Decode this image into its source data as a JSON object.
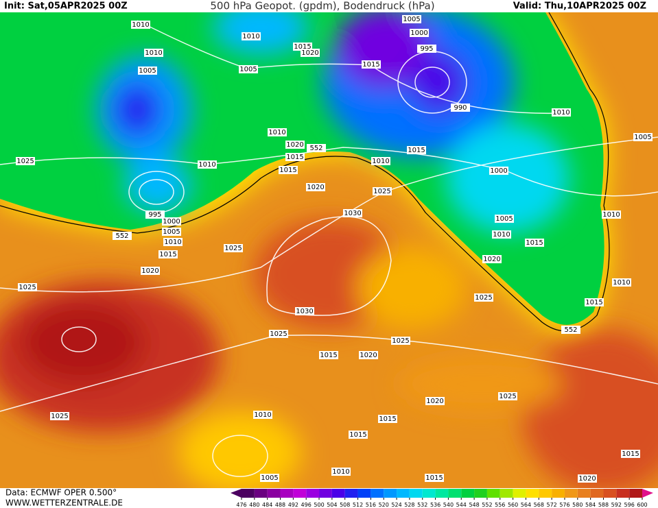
{
  "header": {
    "init": "Init: Sat,05APR2025 00Z",
    "title": "500 hPa Geopot. (gpdm), Bodendruck (hPa)",
    "valid": "Valid: Thu,10APR2025 00Z"
  },
  "map": {
    "isobar_labels": [
      1010,
      1010,
      1015,
      1020,
      1010,
      1005,
      1005,
      1015,
      1005,
      1000,
      995,
      990,
      1010,
      1005,
      1010,
      1020,
      552,
      1015,
      1015,
      1010,
      1010,
      1015,
      1000,
      1025,
      1020,
      1025,
      995,
      1000,
      1005,
      552,
      1010,
      1015,
      1020,
      1025,
      1030,
      1005,
      1010,
      1015,
      1010,
      1020,
      1010,
      1015,
      1025,
      1025,
      1030,
      552,
      1025,
      1025,
      1015,
      1020,
      1025,
      1010,
      1015,
      1020,
      1025,
      1015,
      1015,
      1010,
      1005,
      1015,
      1020
    ]
  },
  "colorbar": {
    "ticks": [
      476,
      480,
      484,
      488,
      492,
      496,
      500,
      504,
      508,
      512,
      516,
      520,
      524,
      528,
      532,
      536,
      540,
      544,
      548,
      552,
      556,
      560,
      564,
      568,
      572,
      576,
      580,
      584,
      588,
      592,
      596,
      600
    ],
    "colors": [
      "#4b0060",
      "#6a0080",
      "#8a00a0",
      "#a800c0",
      "#c000d8",
      "#9a00e0",
      "#7000e0",
      "#4a00e8",
      "#2020f0",
      "#0040f8",
      "#0070ff",
      "#0098ff",
      "#00b8ff",
      "#00d8f0",
      "#00e8d0",
      "#00e8a0",
      "#00e070",
      "#00d040",
      "#20d020",
      "#60e000",
      "#a0e800",
      "#e0f000",
      "#ffe000",
      "#ffc800",
      "#f8b000",
      "#f09818",
      "#e88020",
      "#e06820",
      "#d85020",
      "#c83020",
      "#b01818"
    ]
  },
  "footer": {
    "source": "Data: ECMWF OPER 0.500°",
    "site": "WWW.WETTERZENTRALE.DE"
  }
}
